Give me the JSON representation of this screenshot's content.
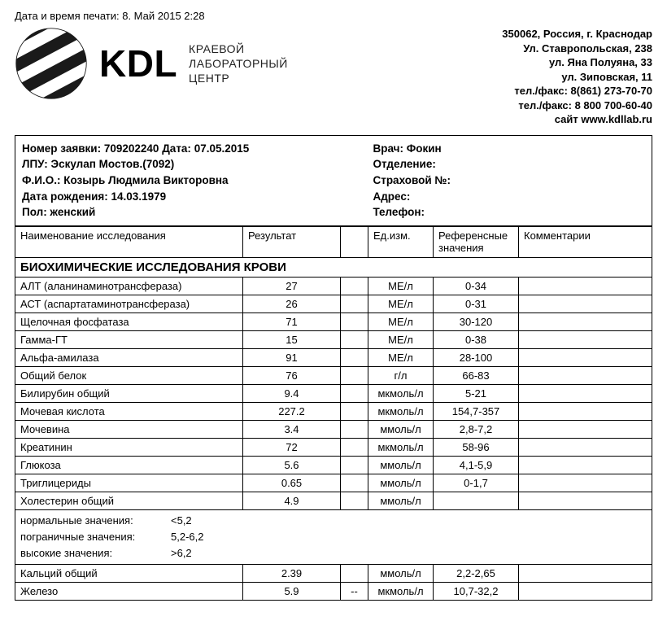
{
  "print_line": "Дата и время печати: 8. Май 2015 2:28",
  "brand": {
    "title": "KDL",
    "sub1": "КРАЕВОЙ",
    "sub2": "ЛАБОРАТОРНЫЙ",
    "sub3": "ЦЕНТР"
  },
  "address": {
    "l1": "350062, Россия, г. Краснодар",
    "l2": "Ул. Ставропольская, 238",
    "l3": "ул. Яна Полуяна, 33",
    "l4": "ул. Зиповская, 11",
    "l5": "тел./факс: 8(861) 273-70-70",
    "l6": "тел./факс: 8 800 700-60-40",
    "l7": "сайт www.kdllab.ru"
  },
  "info": {
    "order_label": "Номер заявки:",
    "order_value": "709202240",
    "date_label": "Дата:",
    "date_value": "07.05.2015",
    "lpu_line": "ЛПУ: Эскулап Мостов.(7092)",
    "fio_label": "Ф.И.О.:",
    "fio_value": "Козырь Людмила Викторовна",
    "dob_line": "Дата рождения: 14.03.1979",
    "sex_line": "Пол: женский",
    "doctor_line": "Врач: Фокин",
    "dept_line": "Отделение:",
    "ins_line": "Страховой №:",
    "addr_line": "Адрес:",
    "tel_line": "Телефон:"
  },
  "columns": {
    "name": "Наименование исследования",
    "result": "Результат",
    "flag": "",
    "unit": "Ед.изм.",
    "ref": "Референсные значения",
    "comment": "Комментарии"
  },
  "section_title": "БИОХИМИЧЕСКИЕ ИССЛЕДОВАНИЯ КРОВИ",
  "rows1": [
    {
      "name": "АЛТ (аланинаминотрансфераза)",
      "result": "27",
      "unit": "МЕ/л",
      "ref": "0-34"
    },
    {
      "name": "АСТ (аспартатаминотрансфераза)",
      "result": "26",
      "unit": "МЕ/л",
      "ref": "0-31"
    },
    {
      "name": "Щелочная фосфатаза",
      "result": "71",
      "unit": "МЕ/л",
      "ref": "30-120"
    },
    {
      "name": "Гамма-ГТ",
      "result": "15",
      "unit": "МЕ/л",
      "ref": "0-38"
    },
    {
      "name": "Альфа-амилаза",
      "result": "91",
      "unit": "МЕ/л",
      "ref": "28-100"
    },
    {
      "name": "Общий белок",
      "result": "76",
      "unit": "г/л",
      "ref": "66-83"
    },
    {
      "name": "Билирубин общий",
      "result": "9.4",
      "unit": "мкмоль/л",
      "ref": "5-21"
    },
    {
      "name": "Мочевая кислота",
      "result": "227.2",
      "unit": "мкмоль/л",
      "ref": "154,7-357"
    },
    {
      "name": "Мочевина",
      "result": "3.4",
      "unit": "ммоль/л",
      "ref": "2,8-7,2"
    },
    {
      "name": "Креатинин",
      "result": "72",
      "unit": "мкмоль/л",
      "ref": "58-96"
    },
    {
      "name": "Глюкоза",
      "result": "5.6",
      "unit": "ммоль/л",
      "ref": "4,1-5,9"
    },
    {
      "name": "Триглицериды",
      "result": "0.65",
      "unit": "ммоль/л",
      "ref": "0-1,7"
    },
    {
      "name": "Холестерин общий",
      "result": "4.9",
      "unit": "ммоль/л",
      "ref": ""
    }
  ],
  "legend": {
    "l1_label": "нормальные значения:",
    "l1_val": "<5,2",
    "l2_label": "пограничные значения:",
    "l2_val": "5,2-6,2",
    "l3_label": "высокие значения:",
    "l3_val": ">6,2"
  },
  "rows2": [
    {
      "name": "Кальций общий",
      "result": "2.39",
      "flag": "",
      "unit": "ммоль/л",
      "ref": "2,2-2,65"
    },
    {
      "name": "Железо",
      "result": "5.9",
      "flag": "--",
      "unit": "мкмоль/л",
      "ref": "10,7-32,2"
    }
  ],
  "style": {
    "text_color": "#000000",
    "background_color": "#ffffff",
    "border_color": "#000000",
    "font_size_base": 13,
    "font_size_brand": 46,
    "font_size_section": 15
  }
}
